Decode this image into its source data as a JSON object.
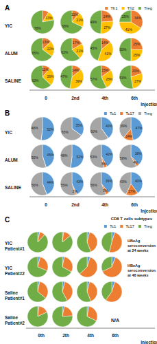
{
  "chart_data": [
    {
      "type": "pie",
      "title": "A",
      "legend": "upper right",
      "data_labels": true,
      "rows": [
        "YIC",
        "ALUM",
        "SALINE"
      ],
      "columns": [
        "0",
        "2nd",
        "4th",
        "6th"
      ],
      "axis_label": "Injection",
      "series": [
        {
          "name": "Th1",
          "color": "#ed7d31",
          "values": [
            [
              9,
              11,
              24,
              34
            ],
            [
              13,
              17,
              14,
              25
            ],
            [
              11,
              14,
              15,
              20
            ]
          ],
          "value_labels": [
            [
              "9%",
              "11%",
              "24%",
              "34%"
            ],
            [
              "13%",
              "17%",
              "14%",
              "25%"
            ],
            [
              "11%",
              "14%",
              "15%",
              "20%"
            ]
          ]
        },
        {
          "name": "Th2",
          "color": "#ffc000",
          "values": [
            [
              13,
              21,
              27,
              41
            ],
            [
              22,
              21,
              41,
              25
            ],
            [
              26,
              39,
              28,
              27
            ]
          ],
          "value_labels": [
            [
              "13%",
              "21%",
              "27%",
              "41%"
            ],
            [
              "22%",
              "21%",
              "41%",
              "25%"
            ],
            [
              "26%",
              "39%",
              "28%",
              "27%"
            ]
          ]
        },
        {
          "name": "Treg",
          "color": "#70ad47",
          "values": [
            [
              78,
              68,
              49,
              25
            ],
            [
              65,
              62,
              45,
              50
            ],
            [
              63,
              47,
              57,
              53
            ]
          ],
          "value_labels": [
            [
              "78%",
              "68%",
              "49%",
              "25%"
            ],
            [
              "65%",
              "62%",
              "45%",
              "50%"
            ],
            [
              "63%",
              "47%",
              "57%",
              "53%"
            ]
          ]
        }
      ]
    },
    {
      "type": "pie",
      "title": "B",
      "legend": "upper right",
      "data_labels": true,
      "rows": [
        "YIC",
        "ALUM",
        "SALINE"
      ],
      "columns": [
        "0",
        "2nd",
        "4th",
        "6th"
      ],
      "axis_label": "Injection",
      "series": [
        {
          "name": "Tc1",
          "color": "#5b9bd5",
          "values": [
            [
              52,
              35,
              40,
              47
            ],
            [
              45,
              52,
              42,
              38
            ],
            [
              44,
              43,
              39,
              40
            ]
          ],
          "value_labels": [
            [
              "52%",
              "35%",
              "40%",
              "47%"
            ],
            [
              "45%",
              "52%",
              "42%",
              "38%"
            ],
            [
              "44%",
              "43%",
              "39%",
              "40%"
            ]
          ]
        },
        {
          "name": "Tc17",
          "color": "#ed7d31",
          "values": [
            [
              0,
              0,
              0,
              14
            ],
            [
              0,
              0,
              5,
              4
            ],
            [
              0,
              2,
              5,
              17
            ]
          ],
          "value_labels": [
            [
              null,
              null,
              null,
              "14%"
            ],
            [
              null,
              null,
              "5%",
              "4%"
            ],
            [
              null,
              "2%",
              "5%",
              "17%"
            ]
          ]
        },
        {
          "name": "Treg",
          "color": "#a5a5a5",
          "values": [
            [
              48,
              65,
              60,
              39
            ],
            [
              55,
              48,
              53,
              58
            ],
            [
              56,
              55,
              56,
              43
            ]
          ],
          "value_labels": [
            [
              "48%",
              "65%",
              "60%",
              "39%"
            ],
            [
              "55%",
              "48%",
              "53%",
              "58%"
            ],
            [
              "56%",
              "55%",
              "56%",
              "43%"
            ]
          ]
        }
      ]
    },
    {
      "type": "pie",
      "title": "C",
      "legend": "upper right",
      "legend_title": "CD8 T cells subtypes",
      "data_labels": false,
      "rows": [
        "YIC Patient#1",
        "YIC Patient#2",
        "Saline Patient#1",
        "Saline Patient#2"
      ],
      "columns": [
        "0th",
        "2th",
        "4th",
        "6th"
      ],
      "axis_label": "Injection",
      "missing_label": "N/A",
      "annotations": [
        {
          "text": "HBeAg seroconversion at 24 weeks",
          "row": 0
        },
        {
          "text": "HBeAg seroconversion at 48 weeks",
          "row": 1
        }
      ],
      "series": [
        {
          "name": "Tc1",
          "color": "#5b9bd5",
          "values": [
            [
              3,
              2,
              4,
              5
            ],
            [
              4,
              3,
              5,
              6
            ],
            [
              3,
              4,
              4,
              5
            ],
            [
              2,
              3,
              3,
              null
            ]
          ]
        },
        {
          "name": "Tc17",
          "color": "#ed7d31",
          "values": [
            [
              9,
              12,
              40,
              49
            ],
            [
              27,
              30,
              58,
              62
            ],
            [
              33,
              38,
              40,
              55
            ],
            [
              16,
              21,
              29,
              null
            ]
          ]
        },
        {
          "name": "Treg",
          "color": "#70ad47",
          "values": [
            [
              88,
              86,
              56,
              46
            ],
            [
              69,
              67,
              37,
              32
            ],
            [
              64,
              58,
              56,
              40
            ],
            [
              82,
              76,
              68,
              null
            ]
          ]
        }
      ]
    }
  ]
}
